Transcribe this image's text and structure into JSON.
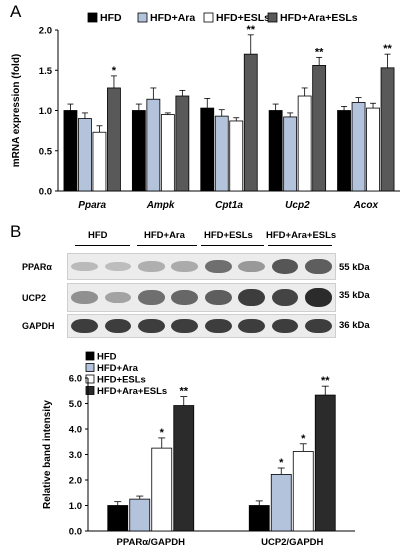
{
  "panel_a_label": "A",
  "panel_b_label": "B",
  "chart_data": [
    {
      "type": "bar",
      "panel": "A",
      "ylabel": "mRNA expression (fold)",
      "xlabel": "",
      "ylim": [
        0.0,
        2.0
      ],
      "yticks": [
        "0.0",
        "0.5",
        "1.0",
        "1.5",
        "2.0"
      ],
      "categories": [
        "Ppara",
        "Ampk",
        "Cpt1a",
        "Ucp2",
        "Acox"
      ],
      "series": [
        {
          "name": "HFD",
          "color": "#000000",
          "values": [
            1.0,
            1.0,
            1.03,
            1.0,
            1.0
          ],
          "errors": [
            0.08,
            0.08,
            0.12,
            0.08,
            0.05
          ],
          "annotations": [
            "",
            "",
            "",
            "",
            ""
          ]
        },
        {
          "name": "HFD+Ara",
          "color": "#b4c3dc",
          "values": [
            0.9,
            1.14,
            0.93,
            0.92,
            1.1
          ],
          "errors": [
            0.07,
            0.14,
            0.08,
            0.05,
            0.06
          ],
          "annotations": [
            "",
            "",
            "",
            "",
            ""
          ]
        },
        {
          "name": "HFD+ESLs",
          "color": "#ffffff",
          "values": [
            0.73,
            0.95,
            0.87,
            1.18,
            1.03
          ],
          "errors": [
            0.08,
            0.02,
            0.04,
            0.1,
            0.06
          ],
          "annotations": [
            "",
            "",
            "",
            "",
            ""
          ]
        },
        {
          "name": "HFD+Ara+ESLs",
          "color": "#595959",
          "values": [
            1.28,
            1.18,
            1.7,
            1.56,
            1.53
          ],
          "errors": [
            0.15,
            0.07,
            0.24,
            0.1,
            0.17
          ],
          "annotations": [
            "*",
            "",
            "**",
            "**",
            "**"
          ]
        }
      ],
      "legend_position": "top"
    },
    {
      "type": "bar",
      "panel": "B",
      "ylabel": "Relative band intensity",
      "xlabel": "",
      "ylim": [
        0.0,
        6.0
      ],
      "yticks": [
        "0.0",
        "1.0",
        "2.0",
        "3.0",
        "4.0",
        "5.0",
        "6.0"
      ],
      "categories": [
        "PPARα/GAPDH",
        "UCP2/GAPDH"
      ],
      "series": [
        {
          "name": "HFD",
          "color": "#000000",
          "values": [
            1.0,
            1.0
          ],
          "errors": [
            0.15,
            0.18
          ],
          "annotations": [
            "",
            ""
          ]
        },
        {
          "name": "HFD+Ara",
          "color": "#b4c3dc",
          "values": [
            1.25,
            2.22
          ],
          "errors": [
            0.12,
            0.25
          ],
          "annotations": [
            "",
            "*"
          ]
        },
        {
          "name": "HFD+ESLs",
          "color": "#ffffff",
          "values": [
            3.25,
            3.12
          ],
          "errors": [
            0.4,
            0.3
          ],
          "annotations": [
            "*",
            "*"
          ]
        },
        {
          "name": "HFD+Ara+ESLs",
          "color": "#2b2b2b",
          "values": [
            4.92,
            5.33
          ],
          "errors": [
            0.35,
            0.35
          ],
          "annotations": [
            "**",
            "**"
          ]
        }
      ],
      "legend_position": "top-left"
    }
  ],
  "blot": {
    "groups": [
      "HFD",
      "HFD+Ara",
      "HFD+ESLs",
      "HFD+Ara+ESLs"
    ],
    "rows": [
      {
        "label": "PPARα",
        "kda": "55 kDa",
        "intensity": [
          0.12,
          0.1,
          0.18,
          0.2,
          0.55,
          0.3,
          0.7,
          0.65
        ]
      },
      {
        "label": "UCP2",
        "kda": "35 kDa",
        "intensity": [
          0.35,
          0.25,
          0.55,
          0.6,
          0.65,
          0.85,
          0.8,
          0.95
        ]
      },
      {
        "label": "GAPDH",
        "kda": "36 kDa",
        "intensity": [
          0.85,
          0.85,
          0.85,
          0.85,
          0.85,
          0.85,
          0.85,
          0.85
        ]
      }
    ]
  }
}
